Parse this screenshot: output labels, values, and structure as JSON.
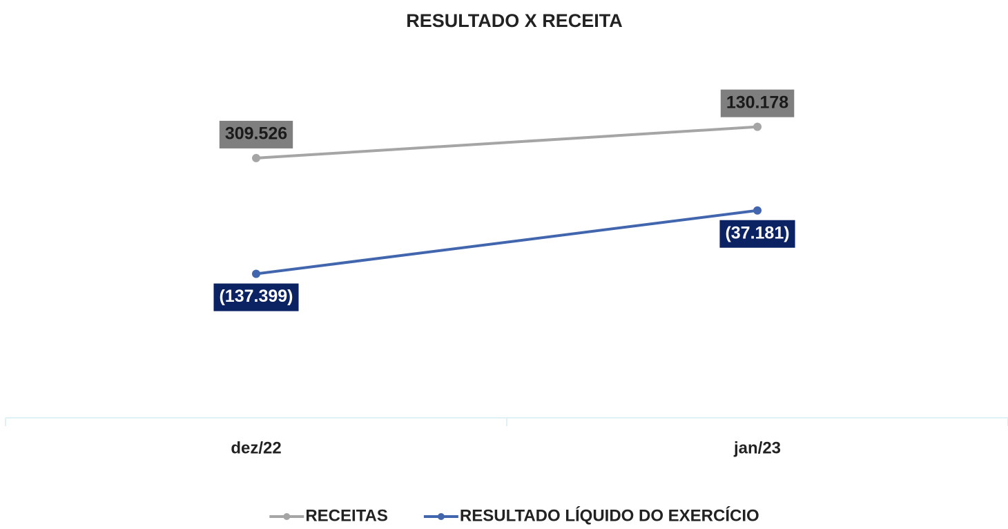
{
  "chart_data": {
    "type": "line",
    "title": "RESULTADO X RECEITA",
    "categories": [
      "dez/22",
      "jan/23"
    ],
    "series": [
      {
        "name": "RECEITAS",
        "color": "#a5a5a5",
        "label_color": "#7f7f7f",
        "axis": "y2",
        "values": [
          309526,
          130178
        ],
        "value_labels": [
          "309.526",
          "130.178"
        ]
      },
      {
        "name": "RESULTADO LÍQUIDO DO EXERCÍCIO",
        "color": "#4166ae",
        "label_color": "#0b2263",
        "values": [
          -137399,
          -37181
        ],
        "value_labels": [
          "(137.399)",
          "(37.181)"
        ]
      }
    ],
    "ylim": [
      -365000,
      230000
    ],
    "y2lim": [
      1800000,
      -360000
    ],
    "legend": "bottom"
  }
}
